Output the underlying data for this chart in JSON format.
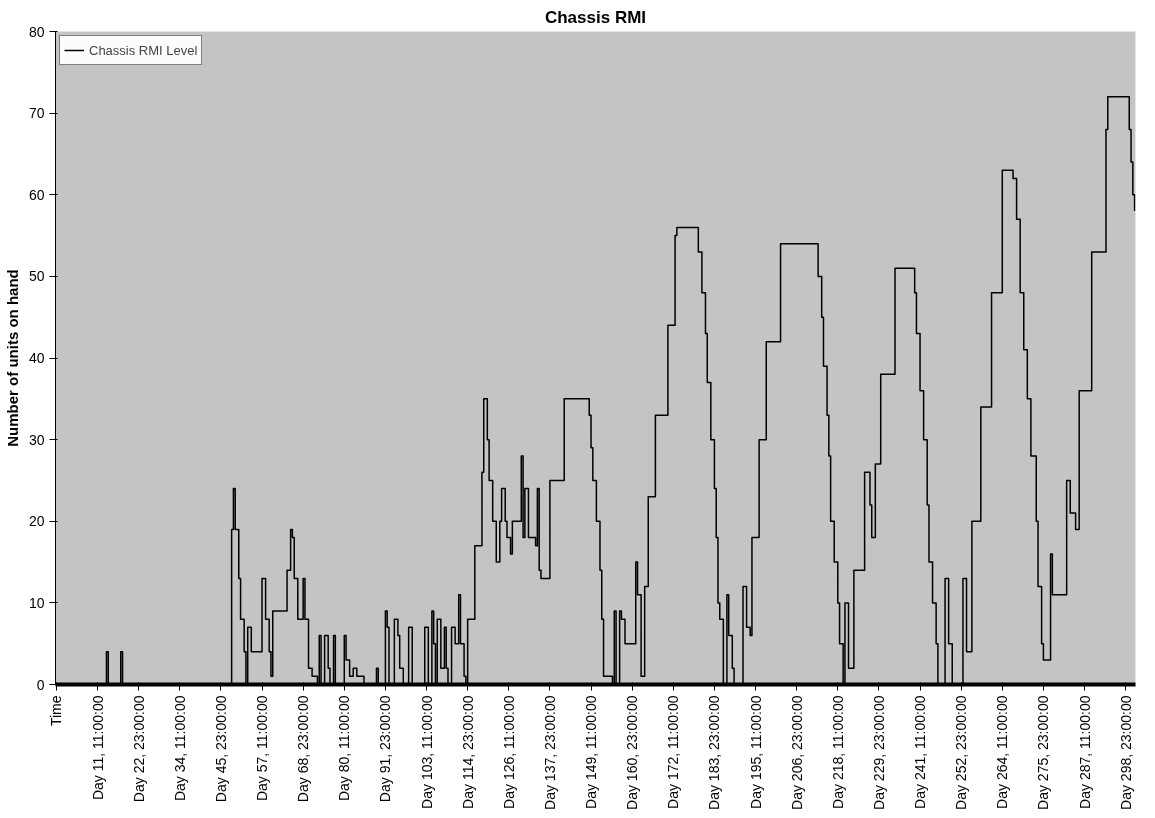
{
  "chart_data": {
    "type": "step",
    "title": "Chassis RMI",
    "ylabel": "Number of units on hand",
    "legend": "top left",
    "grid": false,
    "ylim": [
      0,
      80
    ],
    "yticks": [
      0,
      10,
      20,
      30,
      40,
      50,
      60,
      70,
      80
    ],
    "categories": [
      "Time",
      null,
      null,
      null,
      null,
      null,
      null,
      null,
      null,
      null,
      null,
      null,
      null,
      null,
      null,
      null,
      null,
      null,
      null,
      null,
      null,
      null,
      null,
      "Day 11, 11:00:00",
      null,
      null,
      null,
      null,
      null,
      null,
      null,
      null,
      null,
      null,
      null,
      null,
      null,
      null,
      null,
      null,
      null,
      null,
      null,
      null,
      null,
      null,
      "Day 22, 23:00:00",
      null,
      null,
      null,
      null,
      null,
      null,
      null,
      null,
      null,
      null,
      null,
      null,
      null,
      null,
      null,
      null,
      null,
      null,
      null,
      null,
      null,
      null,
      "Day 34, 11:00:00",
      null,
      null,
      null,
      null,
      null,
      null,
      null,
      null,
      null,
      null,
      null,
      null,
      null,
      null,
      null,
      null,
      null,
      null,
      null,
      null,
      null,
      null,
      "Day 45, 23:00:00",
      null,
      null,
      null,
      null,
      null,
      null,
      null,
      null,
      null,
      null,
      null,
      null,
      null,
      null,
      null,
      null,
      null,
      null,
      null,
      null,
      null,
      null,
      "Day 57, 11:00:00",
      null,
      null,
      null,
      null,
      null,
      null,
      null,
      null,
      null,
      null,
      null,
      null,
      null,
      null,
      null,
      null,
      null,
      null,
      null,
      null,
      null,
      null,
      "Day 68, 23:00:00",
      null,
      null,
      null,
      null,
      null,
      null,
      null,
      null,
      null,
      null,
      null,
      null,
      null,
      null,
      null,
      null,
      null,
      null,
      null,
      null,
      null,
      null,
      "Day 80, 11:00:00",
      null,
      null,
      null,
      null,
      null,
      null,
      null,
      null,
      null,
      null,
      null,
      null,
      null,
      null,
      null,
      null,
      null,
      null,
      null,
      null,
      null,
      null,
      "Day 91, 23:00:00",
      null,
      null,
      null,
      null,
      null,
      null,
      null,
      null,
      null,
      null,
      null,
      null,
      null,
      null,
      null,
      null,
      null,
      null,
      null,
      null,
      null,
      null,
      "Day 103, 11:00:00",
      null,
      null,
      null,
      null,
      null,
      null,
      null,
      null,
      null,
      null,
      null,
      null,
      null,
      null,
      null,
      null,
      null,
      null,
      null,
      null,
      null,
      null,
      "Day 114, 23:00:00",
      null,
      null,
      null,
      null,
      null,
      null,
      null,
      null,
      null,
      null,
      null,
      null,
      null,
      null,
      null,
      null,
      null,
      null,
      null,
      null,
      null,
      null,
      "Day 126, 11:00:00",
      null,
      null,
      null,
      null,
      null,
      null,
      null,
      null,
      null,
      null,
      null,
      null,
      null,
      null,
      null,
      null,
      null,
      null,
      null,
      null,
      null,
      null,
      "Day 137, 23:00:00",
      null,
      null,
      null,
      null,
      null,
      null,
      null,
      null,
      null,
      null,
      null,
      null,
      null,
      null,
      null,
      null,
      null,
      null,
      null,
      null,
      null,
      null,
      "Day 149, 11:00:00",
      null,
      null,
      null,
      null,
      null,
      null,
      null,
      null,
      null,
      null,
      null,
      null,
      null,
      null,
      null,
      null,
      null,
      null,
      null,
      null,
      null,
      null,
      "Day 160, 23:00:00",
      null,
      null,
      null,
      null,
      null,
      null,
      null,
      null,
      null,
      null,
      null,
      null,
      null,
      null,
      null,
      null,
      null,
      null,
      null,
      null,
      null,
      null,
      "Day 172, 11:00:00",
      null,
      null,
      null,
      null,
      null,
      null,
      null,
      null,
      null,
      null,
      null,
      null,
      null,
      null,
      null,
      null,
      null,
      null,
      null,
      null,
      null,
      null,
      "Day 183, 23:00:00",
      null,
      null,
      null,
      null,
      null,
      null,
      null,
      null,
      null,
      null,
      null,
      null,
      null,
      null,
      null,
      null,
      null,
      null,
      null,
      null,
      null,
      null,
      "Day 195, 11:00:00",
      null,
      null,
      null,
      null,
      null,
      null,
      null,
      null,
      null,
      null,
      null,
      null,
      null,
      null,
      null,
      null,
      null,
      null,
      null,
      null,
      null,
      null,
      "Day 206, 23:00:00",
      null,
      null,
      null,
      null,
      null,
      null,
      null,
      null,
      null,
      null,
      null,
      null,
      null,
      null,
      null,
      null,
      null,
      null,
      null,
      null,
      null,
      null,
      "Day 218, 11:00:00",
      null,
      null,
      null,
      null,
      null,
      null,
      null,
      null,
      null,
      null,
      null,
      null,
      null,
      null,
      null,
      null,
      null,
      null,
      null,
      null,
      null,
      null,
      "Day 229, 23:00:00",
      null,
      null,
      null,
      null,
      null,
      null,
      null,
      null,
      null,
      null,
      null,
      null,
      null,
      null,
      null,
      null,
      null,
      null,
      null,
      null,
      null,
      null,
      "Day 241, 11:00:00",
      null,
      null,
      null,
      null,
      null,
      null,
      null,
      null,
      null,
      null,
      null,
      null,
      null,
      null,
      null,
      null,
      null,
      null,
      null,
      null,
      null,
      null,
      "Day 252, 23:00:00",
      null,
      null,
      null,
      null,
      null,
      null,
      null,
      null,
      null,
      null,
      null,
      null,
      null,
      null,
      null,
      null,
      null,
      null,
      null,
      null,
      null,
      null,
      "Day 264, 11:00:00",
      null,
      null,
      null,
      null,
      null,
      null,
      null,
      null,
      null,
      null,
      null,
      null,
      null,
      null,
      null,
      null,
      null,
      null,
      null,
      null,
      null,
      null,
      "Day 275, 23:00:00",
      null,
      null,
      null,
      null,
      null,
      null,
      null,
      null,
      null,
      null,
      null,
      null,
      null,
      null,
      null,
      null,
      null,
      null,
      null,
      null,
      null,
      null,
      "Day 287, 11:00:00",
      null,
      null,
      null,
      null,
      null,
      null,
      null,
      null,
      null,
      null,
      null,
      null,
      null,
      null,
      null,
      null,
      null,
      null,
      null,
      null,
      null,
      null,
      "Day 298, 23:00:00",
      null,
      null,
      null,
      null,
      null
    ],
    "series": [
      {
        "name": "Chassis RMI Level",
        "color": "#000000",
        "values": [
          0,
          0,
          0,
          0,
          0,
          0,
          0,
          0,
          0,
          0,
          0,
          0,
          0,
          0,
          0,
          0,
          0,
          0,
          0,
          0,
          0,
          0,
          0,
          0,
          0,
          0,
          0,
          0,
          4,
          0,
          0,
          0,
          0,
          0,
          0,
          0,
          4,
          0,
          0,
          0,
          0,
          0,
          0,
          0,
          0,
          0,
          0,
          0,
          0,
          0,
          0,
          0,
          0,
          0,
          0,
          0,
          0,
          0,
          0,
          0,
          0,
          0,
          0,
          0,
          0,
          0,
          0,
          0,
          0,
          0,
          0,
          0,
          0,
          0,
          0,
          0,
          0,
          0,
          0,
          0,
          0,
          0,
          0,
          0,
          0,
          0,
          0,
          0,
          0,
          0,
          0,
          0,
          0,
          0,
          0,
          0,
          0,
          0,
          19,
          24,
          19,
          19,
          13,
          8,
          8,
          4,
          0,
          7,
          7,
          4,
          4,
          4,
          4,
          4,
          4,
          13,
          13,
          8,
          8,
          4,
          1,
          9,
          9,
          9,
          9,
          9,
          9,
          9,
          9,
          14,
          14,
          19,
          18,
          13,
          13,
          8,
          8,
          8,
          13,
          8,
          8,
          2,
          2,
          1,
          1,
          1,
          0,
          6,
          0,
          0,
          6,
          6,
          2,
          0,
          0,
          6,
          0,
          0,
          0,
          0,
          0,
          6,
          3,
          3,
          1,
          1,
          2,
          2,
          1,
          1,
          1,
          1,
          0,
          0,
          0,
          0,
          0,
          0,
          0,
          2,
          0,
          0,
          0,
          0,
          9,
          7,
          0,
          0,
          0,
          8,
          8,
          6,
          2,
          2,
          0,
          0,
          0,
          7,
          7,
          0,
          0,
          0,
          0,
          0,
          0,
          0,
          7,
          7,
          0,
          0,
          9,
          5,
          0,
          8,
          8,
          2,
          2,
          7,
          2,
          0,
          0,
          7,
          7,
          5,
          5,
          11,
          5,
          5,
          1,
          0,
          8,
          8,
          8,
          8,
          17,
          17,
          17,
          17,
          26,
          35,
          35,
          30,
          25,
          25,
          20,
          20,
          15,
          15,
          20,
          24,
          24,
          20,
          18,
          18,
          16,
          20,
          20,
          20,
          20,
          20,
          28,
          18,
          24,
          24,
          18,
          18,
          18,
          18,
          17,
          24,
          14,
          13,
          13,
          13,
          13,
          13,
          25,
          25,
          25,
          25,
          25,
          25,
          25,
          25,
          35,
          35,
          35,
          35,
          35,
          35,
          35,
          35,
          35,
          35,
          35,
          35,
          35,
          35,
          33,
          29,
          25,
          25,
          20,
          20,
          14,
          8,
          1,
          1,
          1,
          1,
          1,
          0,
          9,
          0,
          0,
          9,
          8,
          8,
          5,
          5,
          5,
          5,
          5,
          5,
          15,
          11,
          11,
          1,
          1,
          12,
          12,
          23,
          23,
          23,
          23,
          33,
          33,
          33,
          33,
          33,
          33,
          33,
          44,
          44,
          44,
          44,
          55,
          56,
          56,
          56,
          56,
          56,
          56,
          56,
          56,
          56,
          56,
          56,
          56,
          53,
          53,
          48,
          48,
          43,
          37,
          37,
          30,
          30,
          24,
          18,
          10,
          8,
          8,
          0,
          0,
          11,
          6,
          6,
          2,
          0,
          0,
          0,
          0,
          0,
          12,
          12,
          7,
          7,
          6,
          18,
          18,
          18,
          18,
          30,
          30,
          30,
          30,
          42,
          42,
          42,
          42,
          42,
          42,
          42,
          42,
          54,
          54,
          54,
          54,
          54,
          54,
          54,
          54,
          54,
          54,
          54,
          54,
          54,
          54,
          54,
          54,
          54,
          54,
          54,
          54,
          54,
          50,
          50,
          45,
          39,
          39,
          33,
          28,
          20,
          20,
          15,
          15,
          10,
          5,
          5,
          0,
          10,
          10,
          2,
          2,
          2,
          14,
          14,
          14,
          14,
          14,
          14,
          26,
          26,
          26,
          22,
          18,
          18,
          27,
          27,
          27,
          38,
          38,
          38,
          38,
          38,
          38,
          38,
          38,
          51,
          51,
          51,
          51,
          51,
          51,
          51,
          51,
          51,
          51,
          51,
          48,
          43,
          43,
          36,
          36,
          30,
          30,
          22,
          15,
          15,
          10,
          10,
          5,
          0,
          0,
          0,
          0,
          13,
          13,
          5,
          5,
          0,
          0,
          0,
          0,
          0,
          0,
          13,
          13,
          4,
          4,
          4,
          20,
          20,
          20,
          20,
          20,
          34,
          34,
          34,
          34,
          34,
          34,
          48,
          48,
          48,
          48,
          48,
          48,
          63,
          63,
          63,
          63,
          63,
          63,
          62,
          62,
          57,
          57,
          48,
          48,
          41,
          41,
          35,
          35,
          28,
          28,
          28,
          20,
          12,
          12,
          5,
          3,
          3,
          3,
          3,
          16,
          11,
          11,
          11,
          11,
          11,
          11,
          11,
          11,
          25,
          25,
          21,
          21,
          21,
          19,
          19,
          36,
          36,
          36,
          36,
          36,
          36,
          36,
          53,
          53,
          53,
          53,
          53,
          53,
          53,
          53,
          68,
          72,
          72,
          72,
          72,
          72,
          72,
          72,
          72,
          72,
          72,
          72,
          72,
          68,
          64,
          60,
          58
        ]
      }
    ]
  }
}
